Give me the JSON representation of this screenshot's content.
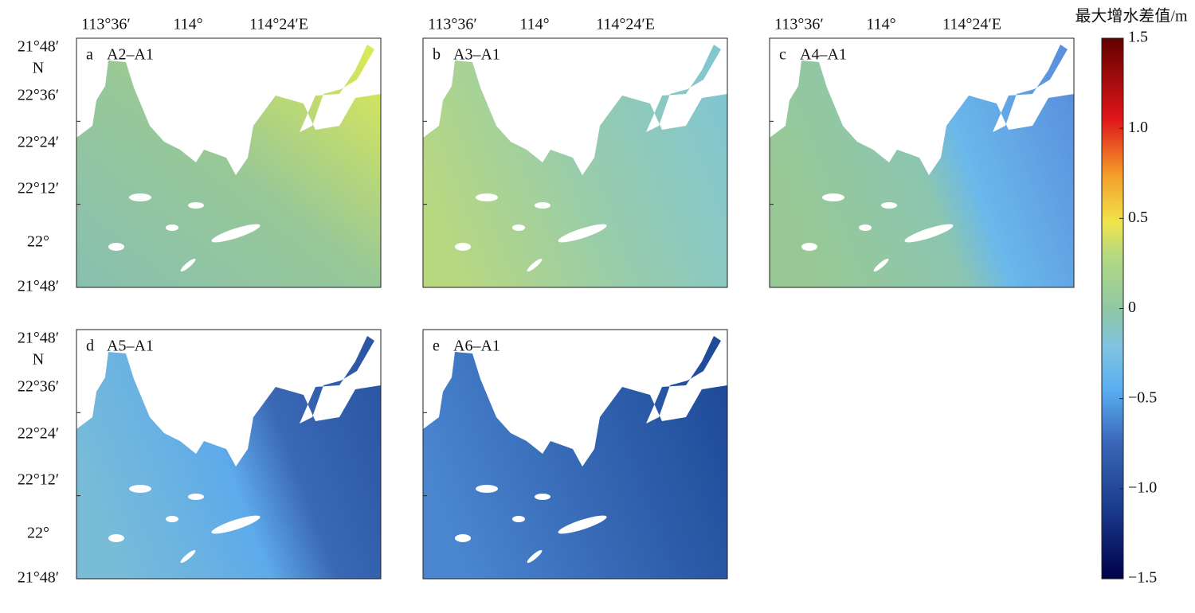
{
  "colorbar": {
    "title": "最大增水差值/m",
    "clim": [
      -1.5,
      1.5
    ],
    "ticks": [
      {
        "value": 1.5,
        "label": "1.5"
      },
      {
        "value": 1.0,
        "label": "1.0"
      },
      {
        "value": 0.5,
        "label": "0.5"
      },
      0,
      {
        "value": -0.5,
        "label": "−0.5"
      },
      {
        "value": -1.0,
        "label": "−1.0"
      },
      {
        "value": -1.5,
        "label": "−1.5"
      }
    ]
  },
  "x_axis_labels": [
    "113°36′",
    "114°",
    "114°24′E"
  ],
  "y_axis_labels": [
    "21°48′",
    "22°36′",
    "22°24′",
    "22°12′",
    "22°",
    "21°48′"
  ],
  "y_axis_unit": "N",
  "panels": [
    {
      "letter": "a",
      "title": "A2–A1"
    },
    {
      "letter": "b",
      "title": "A3–A1"
    },
    {
      "letter": "c",
      "title": "A4–A1"
    },
    {
      "letter": "d",
      "title": "A5–A1"
    },
    {
      "letter": "e",
      "title": "A6–A1"
    }
  ]
}
